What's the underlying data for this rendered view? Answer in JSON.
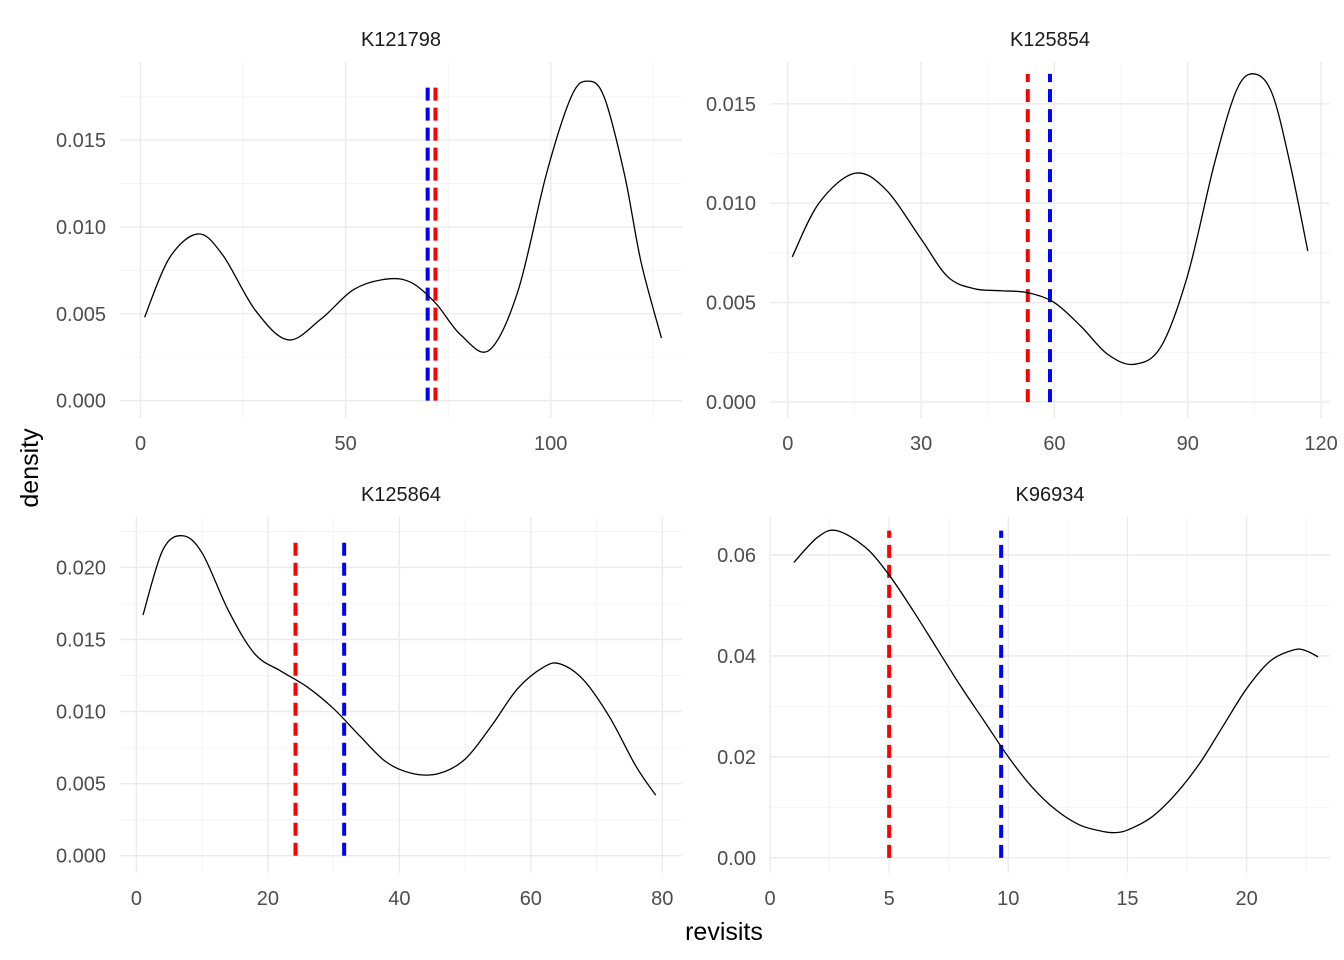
{
  "figure": {
    "xlabel": "revisits",
    "ylabel": "density",
    "colors": {
      "mean_line": "#ff0000",
      "second_line": "#0000ff",
      "density": "#000000",
      "grid": "#ebebeb"
    }
  },
  "chart_data": [
    {
      "type": "line",
      "title": "K121798",
      "xlim": [
        -5,
        132
      ],
      "ylim": [
        -0.001,
        0.0195
      ],
      "xticks": [
        0,
        50,
        100
      ],
      "xtick_labels": [
        "0",
        "50",
        "100"
      ],
      "yticks": [
        0,
        0.005,
        0.01,
        0.015
      ],
      "ytick_labels": [
        "0.000",
        "0.005",
        "0.010",
        "0.015"
      ],
      "series": [
        {
          "x": [
            1,
            7,
            14,
            20,
            28,
            36,
            44,
            52,
            60,
            66,
            72,
            78,
            85,
            92,
            99,
            105,
            109,
            113,
            118,
            122,
            127
          ],
          "y": [
            0.0048,
            0.0082,
            0.0096,
            0.0084,
            0.0052,
            0.0035,
            0.0047,
            0.0064,
            0.007,
            0.0068,
            0.0056,
            0.0038,
            0.0029,
            0.0063,
            0.0131,
            0.0175,
            0.0184,
            0.0175,
            0.013,
            0.008,
            0.0036
          ]
        }
      ],
      "vlines": [
        {
          "x": 71.9,
          "color": "#ff0000",
          "ymax": 0.0183
        },
        {
          "x": 70.0,
          "color": "#0000ff",
          "ymax": 0.0183
        }
      ]
    },
    {
      "type": "line",
      "title": "K125854",
      "xlim": [
        -4,
        122
      ],
      "ylim": [
        -0.0008,
        0.0171
      ],
      "xticks": [
        0,
        30,
        60,
        90,
        120
      ],
      "xtick_labels": [
        "0",
        "30",
        "60",
        "90",
        "120"
      ],
      "yticks": [
        0,
        0.005,
        0.01,
        0.015
      ],
      "ytick_labels": [
        "0.000",
        "0.005",
        "0.010",
        "0.015"
      ],
      "series": [
        {
          "x": [
            1,
            7,
            15,
            22,
            30,
            36,
            42,
            48,
            54,
            60,
            66,
            72,
            78,
            84,
            90,
            96,
            101,
            105,
            109,
            113,
            117
          ],
          "y": [
            0.0073,
            0.01,
            0.0115,
            0.0107,
            0.0082,
            0.0063,
            0.0057,
            0.0056,
            0.0055,
            0.005,
            0.0038,
            0.0024,
            0.0019,
            0.0028,
            0.0064,
            0.012,
            0.0157,
            0.0165,
            0.0155,
            0.012,
            0.0076
          ]
        }
      ],
      "vlines": [
        {
          "x": 54.0,
          "color": "#ff0000",
          "ymax": 0.0165
        },
        {
          "x": 59.0,
          "color": "#0000ff",
          "ymax": 0.0165
        }
      ]
    },
    {
      "type": "line",
      "title": "K125864",
      "xlim": [
        -2.5,
        83
      ],
      "ylim": [
        -0.0012,
        0.0235
      ],
      "xticks": [
        0,
        20,
        40,
        60,
        80
      ],
      "xtick_labels": [
        "0",
        "20",
        "40",
        "60",
        "80"
      ],
      "yticks": [
        0,
        0.005,
        0.01,
        0.015,
        0.02
      ],
      "ytick_labels": [
        "0.000",
        "0.005",
        "0.010",
        "0.015",
        "0.020"
      ],
      "series": [
        {
          "x": [
            1,
            4,
            7,
            10,
            14,
            18,
            22,
            26,
            30,
            34,
            38,
            42,
            46,
            50,
            54,
            58,
            62,
            64.5,
            68,
            72,
            76,
            79
          ],
          "y": [
            0.0167,
            0.0212,
            0.0222,
            0.021,
            0.017,
            0.014,
            0.0128,
            0.0117,
            0.0102,
            0.0083,
            0.0065,
            0.0057,
            0.0057,
            0.0067,
            0.009,
            0.0116,
            0.0131,
            0.0133,
            0.0122,
            0.0096,
            0.0062,
            0.0042
          ]
        }
      ],
      "vlines": [
        {
          "x": 24.2,
          "color": "#ff0000",
          "ymax": 0.0222
        },
        {
          "x": 31.6,
          "color": "#0000ff",
          "ymax": 0.0222
        }
      ]
    },
    {
      "type": "line",
      "title": "K96934",
      "xlim": [
        0,
        23.5
      ],
      "ylim": [
        -0.003,
        0.0675
      ],
      "xticks": [
        0,
        5,
        10,
        15,
        20
      ],
      "xtick_labels": [
        "0",
        "5",
        "10",
        "15",
        "20"
      ],
      "yticks": [
        0,
        0.02,
        0.04,
        0.06
      ],
      "ytick_labels": [
        "0.00",
        "0.02",
        "0.04",
        "0.06"
      ],
      "series": [
        {
          "x": [
            1,
            2,
            2.8,
            4,
            5,
            6,
            7,
            8,
            9,
            10,
            11,
            12,
            13,
            14,
            14.5,
            15,
            16,
            17,
            18,
            19,
            20,
            21,
            22,
            22.5,
            23
          ],
          "y": [
            0.0585,
            0.0635,
            0.0648,
            0.0615,
            0.056,
            0.049,
            0.0415,
            0.034,
            0.027,
            0.02,
            0.014,
            0.0095,
            0.0065,
            0.0052,
            0.005,
            0.0055,
            0.008,
            0.0125,
            0.0185,
            0.026,
            0.0335,
            0.039,
            0.0412,
            0.041,
            0.0398
          ]
        }
      ],
      "vlines": [
        {
          "x": 5.0,
          "color": "#ff0000",
          "ymax": 0.0648
        },
        {
          "x": 9.7,
          "color": "#0000ff",
          "ymax": 0.0648
        }
      ]
    }
  ]
}
